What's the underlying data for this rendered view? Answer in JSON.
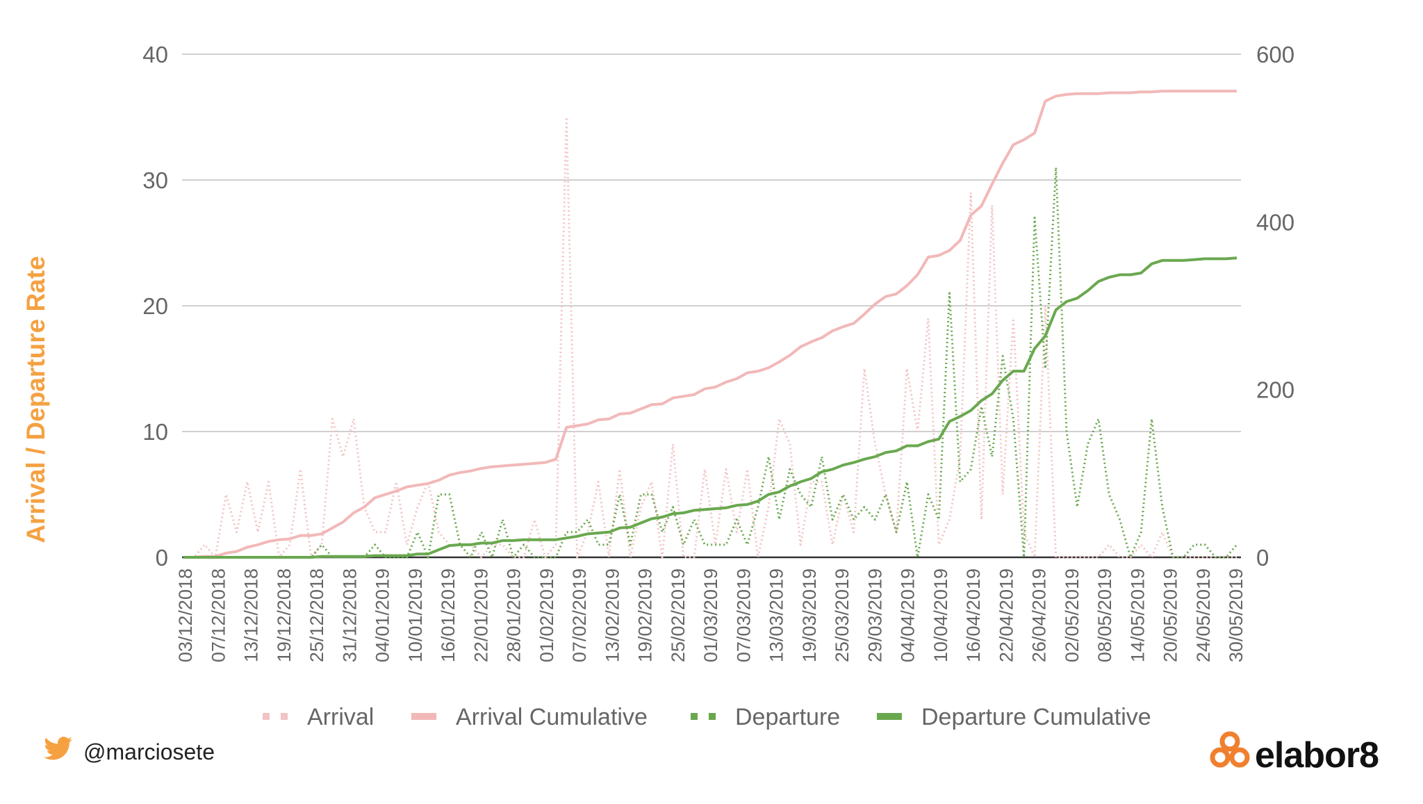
{
  "chart_data": {
    "type": "line",
    "ylabel": "Arrival / Departure Rate",
    "ylim": [
      0,
      40
    ],
    "yticks": [
      "0",
      "10",
      "20",
      "30",
      "40"
    ],
    "y2lim": [
      0,
      600
    ],
    "y2ticks": [
      "0",
      "200",
      "400",
      "600"
    ],
    "x_ticks": [
      "03/12/2018",
      "07/12/2018",
      "13/12/2018",
      "19/12/2018",
      "25/12/2018",
      "31/12/2018",
      "04/01/2019",
      "10/01/2019",
      "16/01/2019",
      "22/01/2019",
      "28/01/2019",
      "01/02/2019",
      "07/02/2019",
      "13/02/2019",
      "19/02/2019",
      "25/02/2019",
      "01/03/2019",
      "07/03/2019",
      "13/03/2019",
      "19/03/2019",
      "25/03/2019",
      "29/03/2019",
      "04/04/2019",
      "10/04/2019",
      "16/04/2019",
      "22/04/2019",
      "26/04/2019",
      "02/05/2019",
      "08/05/2019",
      "14/05/2019",
      "20/05/2019",
      "24/05/2019",
      "30/05/2019"
    ],
    "legend_position": "bottom",
    "grid": true,
    "series": [
      {
        "name": "Arrival",
        "axis": "left",
        "style": "dotted",
        "color": "#f2c4c4",
        "values": [
          0,
          0,
          1,
          0,
          5,
          2,
          6,
          2,
          6,
          0,
          1,
          7,
          0,
          1,
          11,
          8,
          11,
          4,
          2,
          2,
          6,
          1,
          4,
          6,
          2,
          1,
          1,
          1,
          0,
          1,
          1,
          0,
          0,
          3,
          0,
          1,
          35,
          0,
          2,
          6,
          0,
          7,
          0,
          4,
          6,
          0,
          9,
          0,
          0,
          7,
          1,
          7,
          2,
          7,
          0,
          4,
          11,
          9,
          1,
          6,
          6,
          1,
          5,
          2,
          15,
          9,
          5,
          2,
          15,
          10,
          19,
          1,
          3,
          8,
          29,
          3,
          28,
          5,
          19,
          2,
          0,
          20,
          0,
          0,
          0,
          0,
          0,
          1,
          0,
          0,
          1,
          0,
          2,
          0,
          0,
          0,
          0,
          0,
          0,
          0
        ]
      },
      {
        "name": "Arrival Cumulative",
        "axis": "right",
        "style": "solid",
        "color": "#f2b8b8",
        "values": [
          0,
          0,
          1,
          1,
          5,
          7,
          12,
          15,
          19,
          21,
          22,
          26,
          26,
          28,
          35,
          42,
          53,
          60,
          71,
          75,
          79,
          84,
          86,
          88,
          92,
          98,
          101,
          103,
          106,
          108,
          109,
          110,
          111,
          112,
          113,
          117,
          155,
          157,
          159,
          164,
          165,
          171,
          172,
          177,
          182,
          183,
          190,
          192,
          194,
          201,
          203,
          209,
          213,
          220,
          222,
          226,
          233,
          241,
          251,
          257,
          262,
          270,
          275,
          279,
          290,
          302,
          311,
          314,
          324,
          337,
          358,
          360,
          366,
          378,
          408,
          419,
          445,
          470,
          492,
          498,
          506,
          544,
          550,
          552,
          553,
          553,
          553,
          554,
          554,
          554,
          555,
          555,
          556,
          556,
          556,
          556,
          556,
          556,
          556,
          556
        ]
      },
      {
        "name": "Departure",
        "axis": "left",
        "style": "dotted",
        "color": "#6aa84f",
        "values": [
          0,
          0,
          0,
          0,
          0,
          0,
          0,
          0,
          0,
          0,
          0,
          0,
          0,
          1,
          0,
          0,
          0,
          0,
          1,
          0,
          0,
          0,
          2,
          0,
          5,
          5,
          1,
          0,
          2,
          0,
          3,
          0,
          1,
          0,
          0,
          0,
          2,
          2,
          3,
          1,
          1,
          5,
          1,
          5,
          5,
          2,
          4,
          1,
          3,
          1,
          1,
          1,
          3,
          1,
          4,
          8,
          3,
          7,
          5,
          4,
          8,
          3,
          5,
          3,
          4,
          3,
          5,
          2,
          6,
          0,
          5,
          3,
          21,
          6,
          7,
          12,
          8,
          16,
          11,
          0,
          27,
          15,
          31,
          10,
          4,
          9,
          11,
          5,
          3,
          0,
          2,
          11,
          4,
          0,
          0,
          1,
          1,
          0,
          0,
          1
        ]
      },
      {
        "name": "Departure Cumulative",
        "axis": "right",
        "style": "solid",
        "color": "#6aa84f",
        "values": [
          0,
          0,
          0,
          0,
          0,
          0,
          0,
          0,
          0,
          0,
          0,
          0,
          0,
          1,
          1,
          1,
          1,
          1,
          2,
          2,
          2,
          2,
          4,
          4,
          9,
          14,
          15,
          15,
          17,
          17,
          20,
          20,
          21,
          21,
          21,
          21,
          23,
          25,
          28,
          29,
          30,
          35,
          36,
          41,
          46,
          48,
          52,
          53,
          56,
          57,
          58,
          59,
          62,
          63,
          67,
          75,
          78,
          85,
          90,
          94,
          102,
          105,
          110,
          113,
          117,
          120,
          125,
          127,
          133,
          133,
          138,
          141,
          162,
          168,
          175,
          187,
          195,
          211,
          222,
          222,
          249,
          264,
          295,
          305,
          309,
          318,
          329,
          334,
          337,
          337,
          339,
          350,
          354,
          354,
          354,
          355,
          356,
          356,
          356,
          357
        ]
      }
    ]
  },
  "footer": {
    "twitter_handle": "@marciosete",
    "brand": "elabor8",
    "twitter_icon": "twitter-bird-icon",
    "brand_icon": "elabor8-logo-icon",
    "brand_color": "#f07f2e"
  }
}
